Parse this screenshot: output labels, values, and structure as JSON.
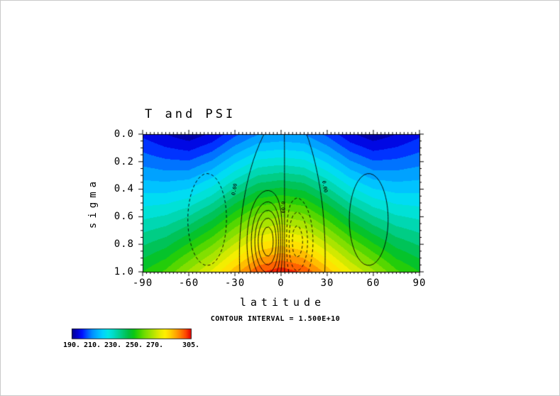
{
  "chart_data": {
    "type": "heatmap",
    "title": "T and PSI",
    "xlabel": "latitude",
    "ylabel": "sigma",
    "x_ticks": [
      -90,
      -60,
      -30,
      0,
      30,
      60,
      90
    ],
    "x_tick_labels": [
      "-90",
      "-60",
      "-30",
      "0",
      "30",
      "60",
      "90"
    ],
    "y_ticks": [
      0.0,
      0.2,
      0.4,
      0.6,
      0.8,
      1.0
    ],
    "y_tick_labels": [
      "0.0",
      "0.2",
      "0.4",
      "0.6",
      "0.8",
      "1.0"
    ],
    "x_range": [
      -90,
      90
    ],
    "sigma_range": [
      0,
      1
    ],
    "sigma_axis_direction": "down",
    "contour_interval_label": "CONTOUR INTERVAL = 1.500E+10",
    "temperature_field": {
      "lat": [
        -90,
        -75,
        -60,
        -45,
        -30,
        -15,
        0,
        15,
        30,
        45,
        60,
        75,
        90
      ],
      "t_at_sigma0": [
        199,
        195,
        192,
        196,
        204,
        210,
        211,
        210,
        204,
        196,
        192,
        195,
        199
      ],
      "t_at_sigma1": [
        250,
        256,
        266,
        276,
        288,
        299,
        303,
        299,
        288,
        276,
        266,
        256,
        250
      ],
      "vertical_exponent": 1.05,
      "band_interval": 5
    },
    "colormap_stops": [
      [
        190,
        "#00008b"
      ],
      [
        195,
        "#0000c8"
      ],
      [
        200,
        "#0010ff"
      ],
      [
        205,
        "#0055ff"
      ],
      [
        210,
        "#0090ff"
      ],
      [
        215,
        "#00b4ff"
      ],
      [
        220,
        "#00d2ff"
      ],
      [
        225,
        "#00e6e6"
      ],
      [
        230,
        "#00dcc8"
      ],
      [
        235,
        "#00d29b"
      ],
      [
        240,
        "#00c86e"
      ],
      [
        245,
        "#00be41"
      ],
      [
        250,
        "#0ac814"
      ],
      [
        255,
        "#3cd200"
      ],
      [
        260,
        "#6edc00"
      ],
      [
        265,
        "#96e100"
      ],
      [
        270,
        "#bee600"
      ],
      [
        275,
        "#e6eb00"
      ],
      [
        280,
        "#fff000"
      ],
      [
        285,
        "#ffd200"
      ],
      [
        290,
        "#ffaa00"
      ],
      [
        295,
        "#ff7d00"
      ],
      [
        300,
        "#ff4600"
      ],
      [
        305,
        "#e10000"
      ]
    ],
    "colorbar": {
      "min": 190,
      "max": 305,
      "values": [
        190,
        210,
        230,
        250,
        270,
        305
      ],
      "labels": [
        "190.",
        "210.",
        "230.",
        "250.",
        "270.",
        "305."
      ]
    },
    "psi": {
      "interval": 15000000000.0,
      "level_min_k": -6,
      "level_max_k": 6,
      "negative_style": "dashed",
      "cells": [
        {
          "amp": 90000000000.0,
          "lat": -8,
          "lat_width": 11,
          "sigma": 0.78,
          "sigma_width": 0.28
        },
        {
          "amp": -60000000000.0,
          "lat": 9,
          "lat_width": 10,
          "sigma": 0.78,
          "sigma_width": 0.28
        },
        {
          "amp": -26000000000.0,
          "lat": -48,
          "lat_width": 17,
          "sigma": 0.62,
          "sigma_width": 0.45
        },
        {
          "amp": 26000000000.0,
          "lat": 57,
          "lat_width": 17,
          "sigma": 0.62,
          "sigma_width": 0.45
        }
      ],
      "annotations": [
        {
          "text": "0.00",
          "lat": -30,
          "sigma": 0.4,
          "rotation_deg": -80
        },
        {
          "text": "0.00",
          "lat": 1,
          "sigma": 0.53,
          "rotation_deg": 90
        },
        {
          "text": "0.00",
          "lat": 28,
          "sigma": 0.38,
          "rotation_deg": 80
        }
      ]
    }
  }
}
